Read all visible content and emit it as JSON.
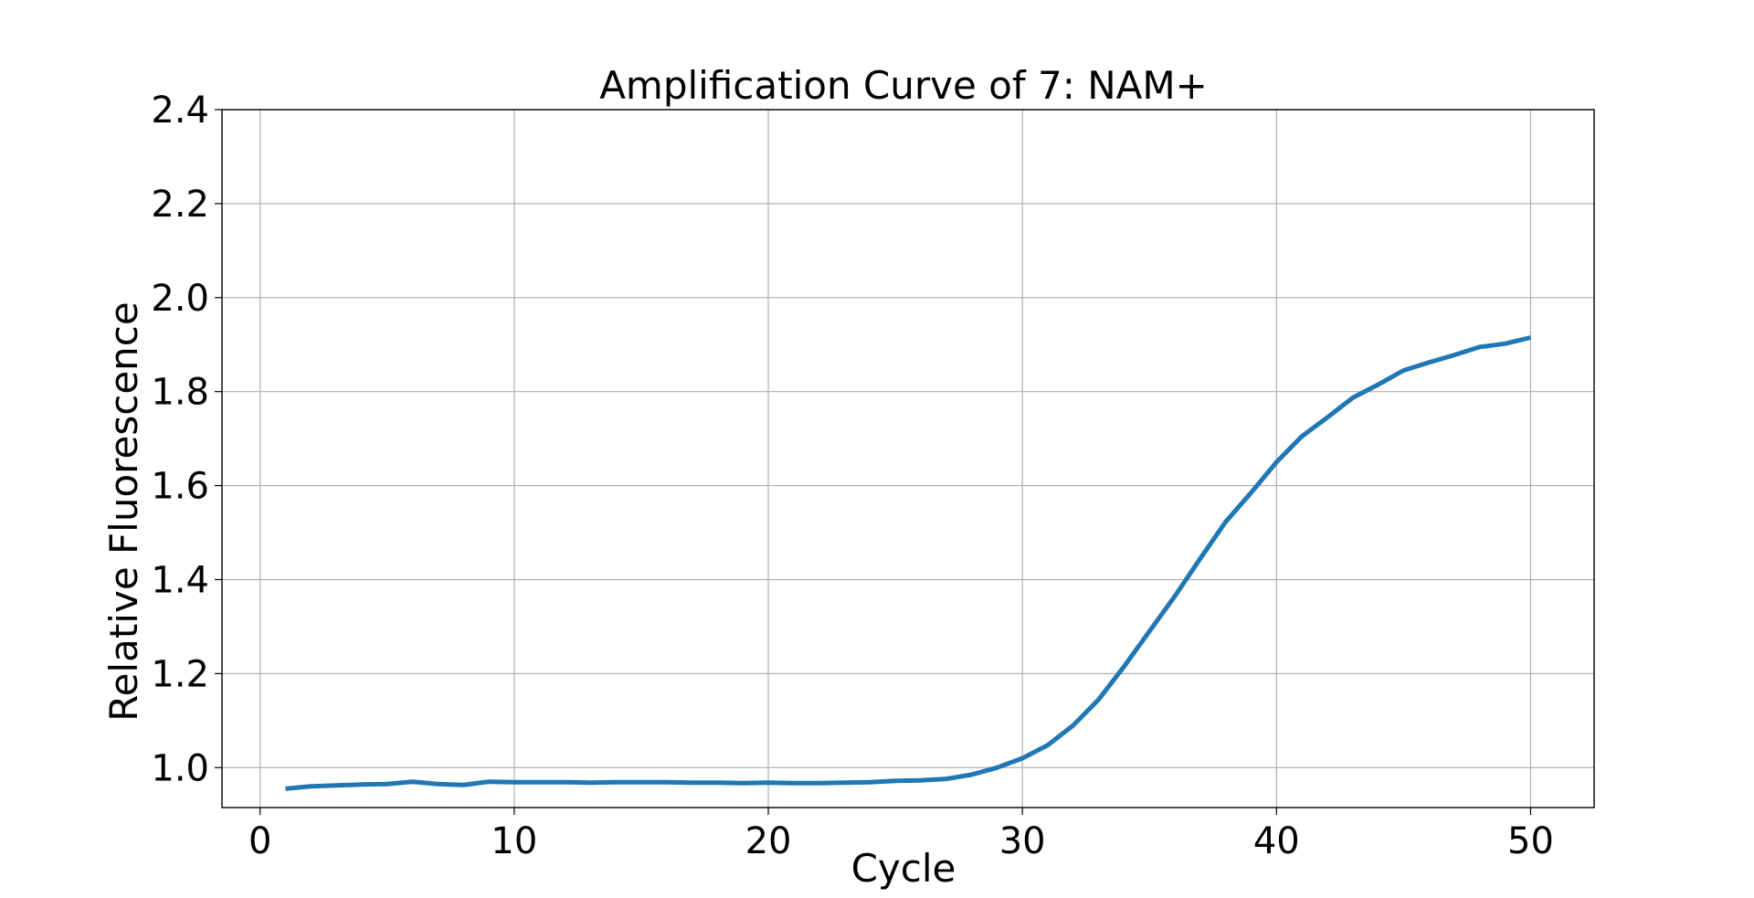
{
  "chart_data": {
    "type": "line",
    "title": "Amplification Curve of 7: NAM+",
    "xlabel": "Cycle",
    "ylabel": "Relative Fluorescence",
    "xlim": [
      -1.5,
      52.5
    ],
    "ylim": [
      0.915,
      2.4
    ],
    "xticks": [
      0,
      10,
      20,
      30,
      40,
      50
    ],
    "xtick_labels": [
      "0",
      "10",
      "20",
      "30",
      "40",
      "50"
    ],
    "yticks": [
      1.0,
      1.2,
      1.4,
      1.6,
      1.8,
      2.0,
      2.2,
      2.4
    ],
    "ytick_labels": [
      "1.0",
      "1.2",
      "1.4",
      "1.6",
      "1.8",
      "2.0",
      "2.2",
      "2.4"
    ],
    "grid": true,
    "line_color": "#1f77b4",
    "series": [
      {
        "x": [
          1,
          2,
          3,
          4,
          5,
          6,
          7,
          8,
          9,
          10,
          11,
          12,
          13,
          14,
          15,
          16,
          17,
          18,
          19,
          20,
          21,
          22,
          23,
          24,
          25,
          26,
          27,
          28,
          29,
          30,
          31,
          32,
          33,
          34,
          35,
          36,
          37,
          38,
          39,
          40,
          41,
          42,
          43,
          44,
          45,
          46,
          47,
          48,
          49,
          50
        ],
        "values": [
          0.955,
          0.96,
          0.962,
          0.964,
          0.965,
          0.97,
          0.965,
          0.963,
          0.97,
          0.969,
          0.969,
          0.969,
          0.968,
          0.969,
          0.969,
          0.969,
          0.968,
          0.968,
          0.967,
          0.968,
          0.967,
          0.967,
          0.968,
          0.969,
          0.972,
          0.973,
          0.976,
          0.985,
          1.0,
          1.02,
          1.048,
          1.09,
          1.145,
          1.215,
          1.29,
          1.365,
          1.445,
          1.523,
          1.585,
          1.65,
          1.705,
          1.745,
          1.787,
          1.815,
          1.845,
          1.862,
          1.878,
          1.895,
          1.902,
          1.915
        ]
      }
    ]
  }
}
